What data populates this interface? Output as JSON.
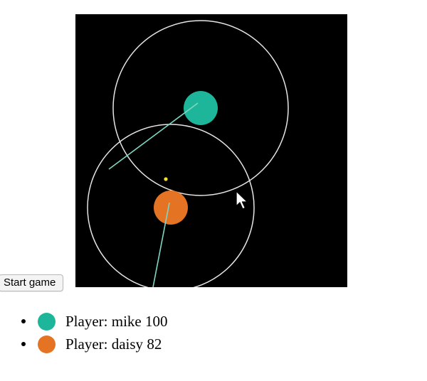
{
  "controls": {
    "start_label": "Start game"
  },
  "colors": {
    "canvas_background": "#000000",
    "ring": "#e6e6e6",
    "aim_line": "#7fd6c2",
    "pellet": "#f7e02a"
  },
  "players": [
    {
      "label": "Player:",
      "name": "mike",
      "score": "100",
      "color": "#1eb69b"
    },
    {
      "label": "Player:",
      "name": "daisy",
      "score": "82",
      "color": "#e47323"
    }
  ],
  "cursor": {
    "icon": "arrow-pointer-icon"
  }
}
